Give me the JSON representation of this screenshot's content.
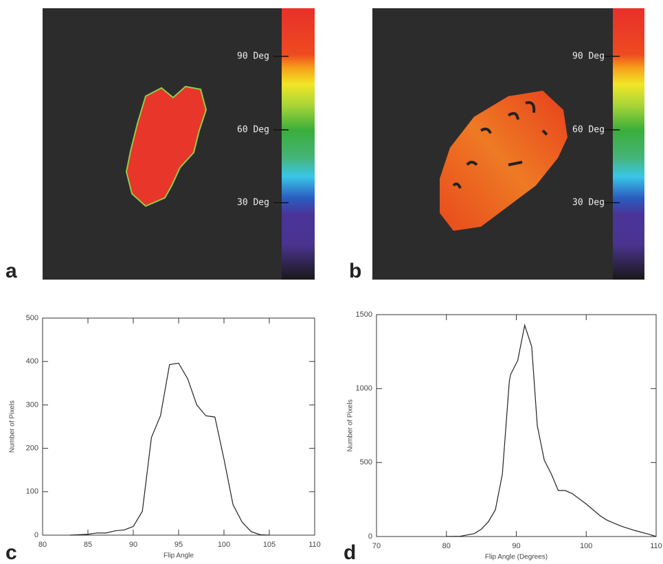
{
  "images": [
    {
      "label": "a",
      "colorbar_labels": [
        "90 Deg",
        "60 Deg",
        "30 Deg"
      ]
    },
    {
      "label": "b",
      "colorbar_labels": [
        "90 Deg",
        "60 Deg",
        "30 Deg"
      ]
    }
  ],
  "chart_data": [
    {
      "type": "line",
      "panel_label": "c",
      "xlabel": "Flip Angle",
      "ylabel": "Number of Pixels",
      "color": "#222",
      "x": [
        83,
        85,
        86,
        87,
        88,
        89,
        90,
        91,
        92,
        93,
        94,
        95,
        96,
        97,
        98,
        99,
        100,
        101,
        102,
        103,
        104,
        105
      ],
      "values": [
        0,
        2,
        5,
        5,
        10,
        12,
        20,
        55,
        225,
        275,
        393,
        396,
        360,
        300,
        275,
        272,
        175,
        70,
        30,
        8,
        1,
        0
      ],
      "xlim": [
        80,
        110
      ],
      "xticks": [
        80,
        85,
        90,
        95,
        100,
        105,
        110
      ],
      "ylim": [
        0,
        500
      ],
      "yticks": [
        0,
        100,
        200,
        300,
        400,
        500
      ]
    },
    {
      "type": "line",
      "panel_label": "d",
      "xlabel": "Flip Angle (Degrees)",
      "ylabel": "Number of Pixels",
      "color": "#222",
      "x": [
        80,
        82,
        84,
        85,
        86,
        87,
        88,
        89,
        89.2,
        90.2,
        91.2,
        92.2,
        93,
        94,
        95,
        96,
        97,
        98,
        100,
        102,
        103,
        105,
        107,
        109,
        110
      ],
      "values": [
        0,
        2,
        20,
        50,
        100,
        180,
        420,
        1050,
        1097,
        1190,
        1428,
        1284,
        750,
        516,
        423,
        311,
        311,
        290,
        220,
        140,
        110,
        70,
        40,
        15,
        0
      ],
      "xlim": [
        70,
        110
      ],
      "xticks": [
        70,
        80,
        90,
        100,
        110
      ],
      "ylim": [
        0,
        1500
      ],
      "yticks": [
        0,
        500,
        1000,
        1500
      ]
    }
  ]
}
